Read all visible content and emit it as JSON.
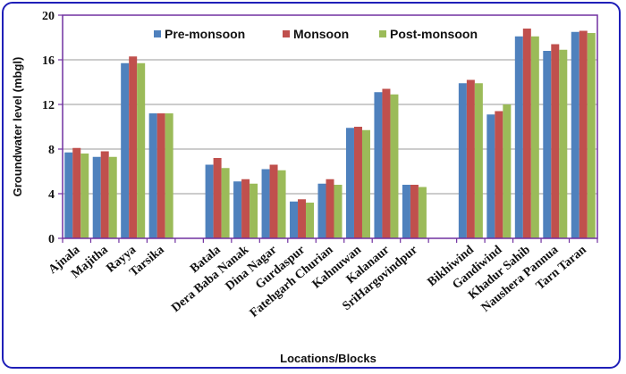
{
  "chart_data": {
    "type": "bar",
    "ylabel": "Groundwater level (mbgl)",
    "xlabel": "Locations/Blocks",
    "ylim": [
      0,
      20
    ],
    "yticks": [
      0,
      4,
      8,
      12,
      16,
      20
    ],
    "legend_position": "top",
    "categories": [
      "Ajnala",
      "Majitha",
      "Rayya",
      "Tarsika",
      "",
      "Batala",
      "Dera Baba Nanak",
      "Dina Nagar",
      "Gurdaspur",
      "Fatehgarh Churian",
      "Kahnuwan",
      "Kalanaur",
      "SriHargovindpur",
      "",
      "Bikhiwind",
      "Gandiwind",
      "Khadur Sahib",
      "Naushera Pannua",
      "Tarn Taran"
    ],
    "series": [
      {
        "name": "Pre-monsoon",
        "color": "#4f81bd",
        "values": [
          7.7,
          7.3,
          15.7,
          11.2,
          null,
          6.6,
          5.1,
          6.2,
          3.3,
          4.9,
          9.9,
          13.1,
          4.8,
          null,
          13.9,
          11.1,
          18.1,
          16.8,
          18.5
        ]
      },
      {
        "name": "Monsoon",
        "color": "#c0504d",
        "values": [
          8.1,
          7.8,
          16.3,
          11.2,
          null,
          7.2,
          5.3,
          6.6,
          3.5,
          5.3,
          10.0,
          13.4,
          4.8,
          null,
          14.2,
          11.4,
          18.8,
          17.4,
          18.6
        ]
      },
      {
        "name": "Post-monsoon",
        "color": "#9bbb59",
        "values": [
          7.6,
          7.3,
          15.7,
          11.2,
          null,
          6.3,
          4.9,
          6.1,
          3.2,
          4.8,
          9.7,
          12.9,
          4.6,
          null,
          13.9,
          12.0,
          18.1,
          16.9,
          18.4
        ]
      }
    ]
  }
}
